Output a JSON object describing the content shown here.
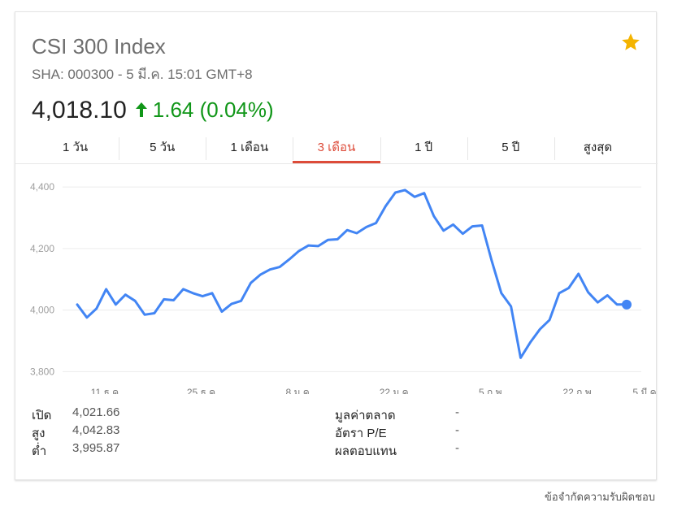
{
  "header": {
    "title": "CSI 300 Index",
    "subtitle": "SHA: 000300 - 5 มี.ค. 15:01 GMT+8",
    "price": "4,018.10",
    "change": "1.64 (0.04%)",
    "change_color": "#109618",
    "star_color": "#f4b400"
  },
  "tabs": [
    {
      "label": "1 วัน"
    },
    {
      "label": "5 วัน"
    },
    {
      "label": "1 เดือน"
    },
    {
      "label": "3 เดือน",
      "active": true
    },
    {
      "label": "1 ปี"
    },
    {
      "label": "5 ปี"
    },
    {
      "label": "สูงสุด"
    }
  ],
  "chart_data": {
    "type": "line",
    "line_color": "#4285f4",
    "ylim": [
      3780,
      4440
    ],
    "y_ticks": [
      {
        "value": 4400,
        "label": "4,400"
      },
      {
        "value": 4200,
        "label": "4,200"
      },
      {
        "value": 4000,
        "label": "4,000"
      },
      {
        "value": 3800,
        "label": "3,800"
      }
    ],
    "x_ticks": [
      {
        "index": 3,
        "label": "11 ธ.ค."
      },
      {
        "index": 13,
        "label": "25 ธ.ค."
      },
      {
        "index": 23,
        "label": "8 ม.ค."
      },
      {
        "index": 33,
        "label": "22 ม.ค."
      },
      {
        "index": 43,
        "label": "5 ก.พ."
      },
      {
        "index": 52,
        "label": "22 ก.พ."
      },
      {
        "index": 59,
        "label": "5 มี.ค."
      }
    ],
    "values": [
      4018,
      3976,
      4005,
      4068,
      4018,
      4050,
      4030,
      3985,
      3990,
      4035,
      4032,
      4068,
      4055,
      4045,
      4055,
      3995,
      4020,
      4030,
      4088,
      4115,
      4132,
      4140,
      4165,
      4192,
      4210,
      4208,
      4228,
      4230,
      4260,
      4250,
      4270,
      4283,
      4338,
      4382,
      4390,
      4368,
      4380,
      4305,
      4258,
      4278,
      4248,
      4272,
      4275,
      4160,
      4055,
      4012,
      3845,
      3895,
      3938,
      3968,
      4055,
      4072,
      4118,
      4058,
      4025,
      4048,
      4018,
      4018
    ]
  },
  "stats_left": [
    {
      "label": "เปิด",
      "value": "4,021.66"
    },
    {
      "label": "สูง",
      "value": "4,042.83"
    },
    {
      "label": "ต่ำ",
      "value": "3,995.87"
    }
  ],
  "stats_right": [
    {
      "label": "มูลค่าตลาด",
      "value": "-"
    },
    {
      "label": "อัตรา P/E",
      "value": "-"
    },
    {
      "label": "ผลตอบแทน",
      "value": "-"
    }
  ],
  "footer": {
    "disclaimer": "ข้อจำกัดความรับผิดชอบ"
  }
}
